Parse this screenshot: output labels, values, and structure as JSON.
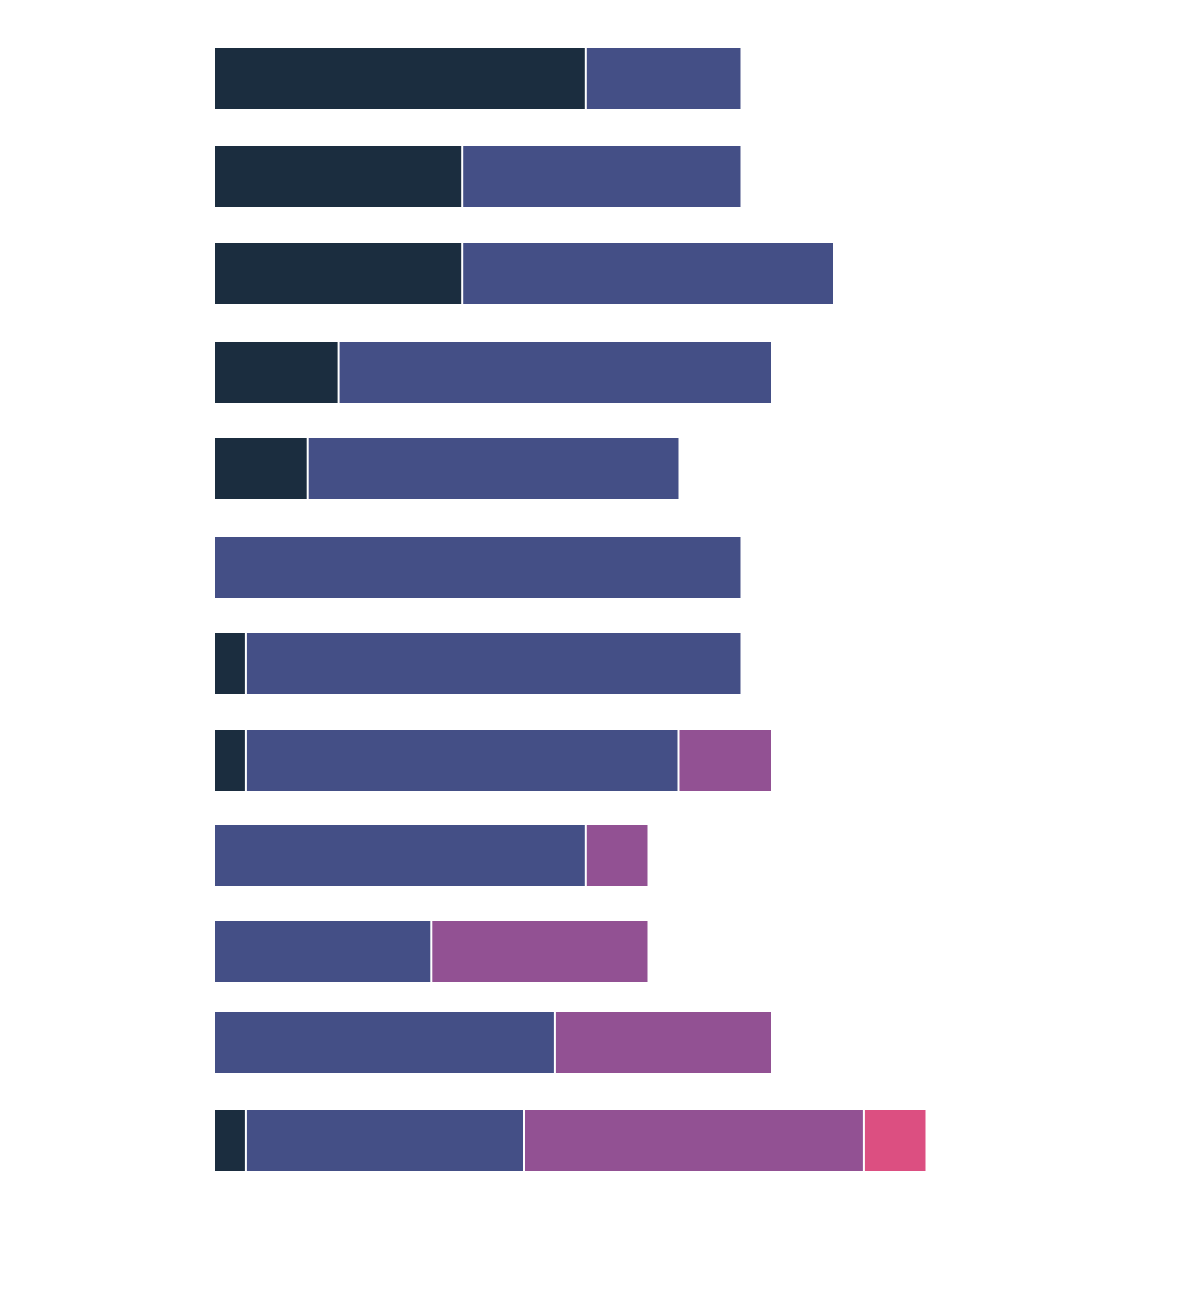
{
  "chart_data": {
    "type": "bar",
    "orientation": "horizontal",
    "stacked": true,
    "xlim": [
      0,
      23
    ],
    "grid": false,
    "legend": "none",
    "categories": [
      "",
      "",
      "",
      "",
      "",
      "",
      "",
      "",
      "",
      "",
      "",
      ""
    ],
    "series": [
      {
        "color": "#1b2d3f",
        "values": [
          12,
          8,
          8,
          4,
          3,
          0,
          1,
          1,
          0,
          0,
          0,
          1
        ]
      },
      {
        "color": "#444f86",
        "values": [
          5,
          9,
          12,
          14,
          12,
          17,
          16,
          14,
          12,
          7,
          11,
          9
        ]
      },
      {
        "color": "#925193",
        "values": [
          0,
          0,
          0,
          0,
          0,
          0,
          0,
          3,
          2,
          7,
          7,
          11
        ]
      },
      {
        "color": "#dc4f81",
        "values": [
          0,
          0,
          0,
          0,
          0,
          0,
          0,
          0,
          0,
          0,
          0,
          2
        ]
      }
    ]
  }
}
